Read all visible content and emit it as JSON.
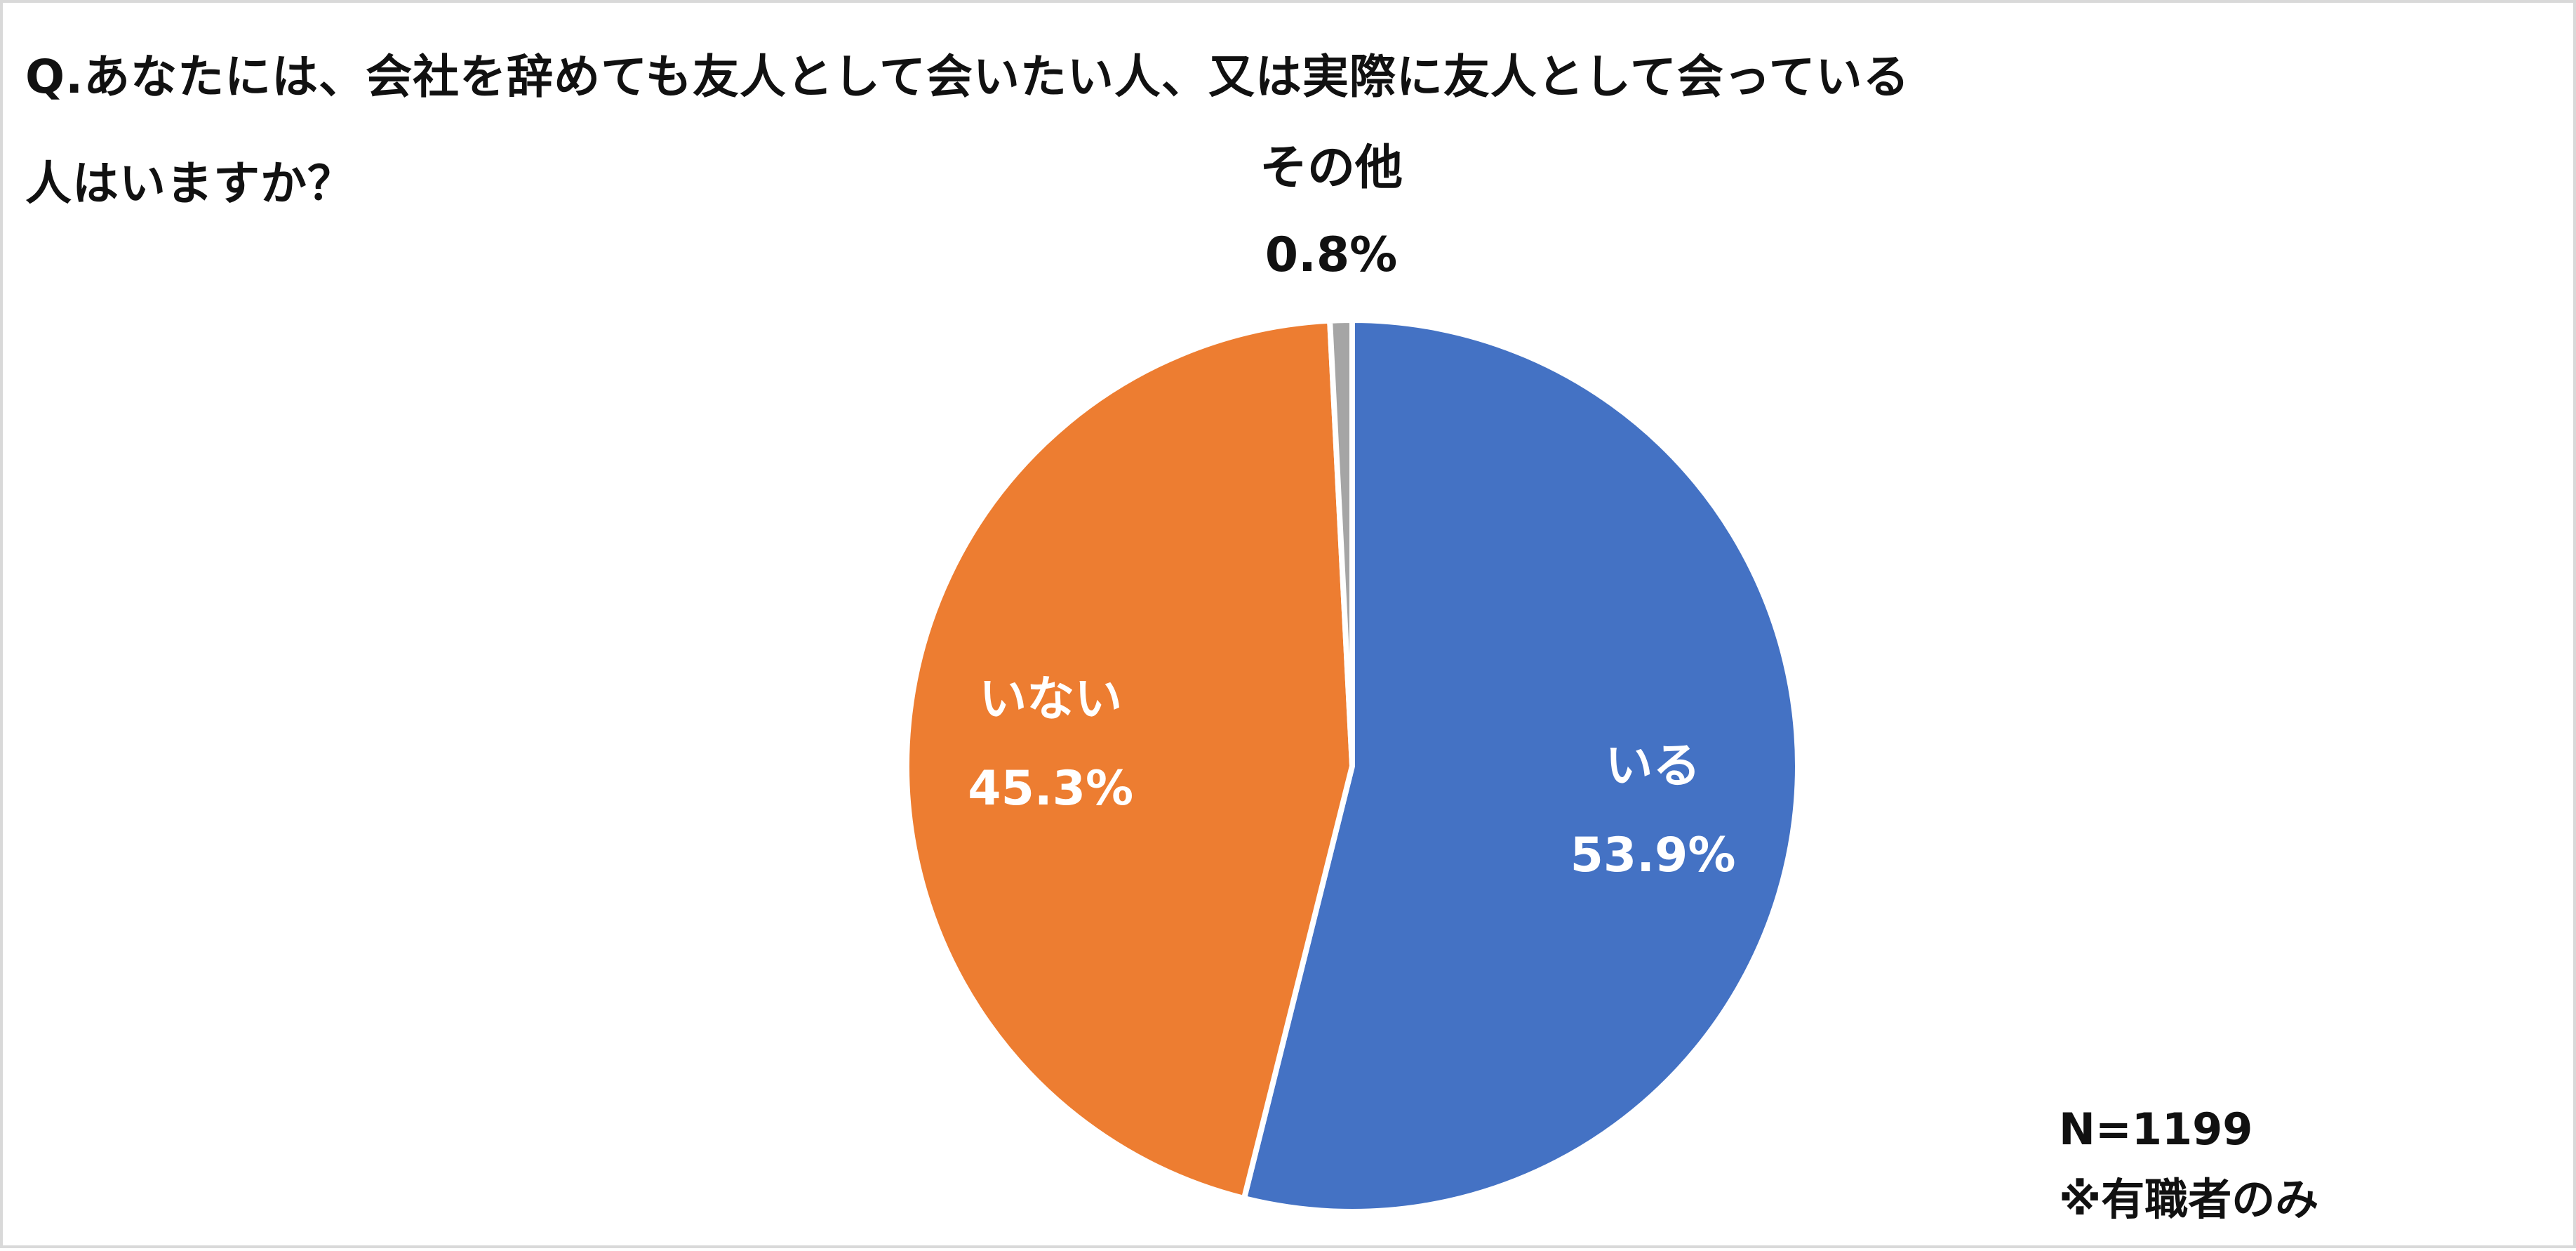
{
  "question": {
    "line1": "Q.あなたには、会社を辞めても友人として会いたい人、又は実際に友人として会っている",
    "line2": "人はいますか？"
  },
  "notes": {
    "sample_size": "N=1199",
    "footnote": "※有職者のみ"
  },
  "chart_data": {
    "type": "pie",
    "title": "Q.あなたには、会社を辞めても友人として会いたい人、又は実際に友人として会っている人はいますか？",
    "slices": [
      {
        "label": "いる",
        "value": 53.9,
        "value_label": "53.9%",
        "color": "#4472C4"
      },
      {
        "label": "いない",
        "value": 45.3,
        "value_label": "45.3%",
        "color": "#ED7D31"
      },
      {
        "label": "その他",
        "value": 0.8,
        "value_label": "0.8%",
        "color": "#A5A5A5"
      }
    ],
    "start_angle": "12 o'clock",
    "direction": "clockwise",
    "label_placement": [
      "inside",
      "inside",
      "outside-top"
    ]
  }
}
